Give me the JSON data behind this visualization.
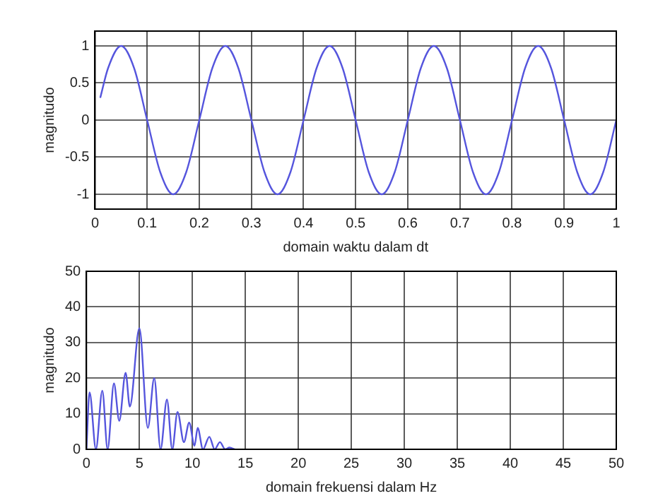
{
  "chart_data": [
    {
      "type": "line",
      "xlabel": "domain waktu dalam dt",
      "ylabel": "magnitudo",
      "color": "#5555dd",
      "grid": true,
      "x": [
        0.01,
        0.025,
        0.05,
        0.075,
        0.1,
        0.125,
        0.15,
        0.175,
        0.2,
        0.225,
        0.25,
        0.275,
        0.3,
        0.325,
        0.35,
        0.375,
        0.4,
        0.425,
        0.45,
        0.475,
        0.5,
        0.525,
        0.55,
        0.575,
        0.6,
        0.625,
        0.65,
        0.675,
        0.7,
        0.725,
        0.75,
        0.775,
        0.8,
        0.825,
        0.85,
        0.875,
        0.9,
        0.925,
        0.95,
        0.975,
        1
      ],
      "values": [
        0.3,
        0.7,
        1,
        0.7,
        0,
        -0.7,
        -1,
        -0.7,
        0,
        0.7,
        1,
        0.7,
        0,
        -0.7,
        -1,
        -0.7,
        0,
        0.7,
        1,
        0.7,
        0,
        -0.7,
        -1,
        -0.7,
        0,
        0.7,
        1,
        0.7,
        0,
        -0.7,
        -1,
        -0.7,
        0,
        0.7,
        1,
        0.7,
        0,
        -0.7,
        -1,
        -0.7,
        0
      ],
      "xlim": [
        0,
        1
      ],
      "ylim": [
        -1.2,
        1.2
      ],
      "xticks": [
        0,
        0.1,
        0.2,
        0.3,
        0.4,
        0.5,
        0.6,
        0.7,
        0.8,
        0.9,
        1
      ],
      "yticks": [
        -1,
        -0.5,
        0,
        0.5,
        1
      ]
    },
    {
      "type": "line",
      "xlabel": "domain frekuensi dalam Hz",
      "ylabel": "magnitudo",
      "color": "#5555dd",
      "grid": true,
      "x": [
        0,
        0.3,
        0.9,
        1.5,
        2,
        2.6,
        3.1,
        3.7,
        4.1,
        5,
        5.8,
        6.4,
        7,
        7.6,
        8.1,
        8.6,
        9.2,
        9.7,
        10.2,
        10.5,
        11,
        11.6,
        12.1,
        12.6,
        13.1,
        13.5,
        14
      ],
      "values": [
        0,
        16,
        0,
        16.5,
        0,
        18.5,
        8,
        21.5,
        12,
        34,
        6,
        20,
        0,
        14,
        0,
        10.5,
        2,
        7.5,
        1,
        6,
        0,
        3.5,
        0,
        2,
        0,
        0.5,
        0
      ],
      "xlim": [
        0,
        50
      ],
      "ylim": [
        0,
        50
      ],
      "xticks": [
        0,
        5,
        10,
        15,
        20,
        25,
        30,
        35,
        40,
        45,
        50
      ],
      "yticks": [
        0,
        10,
        20,
        30,
        40,
        50
      ]
    }
  ]
}
